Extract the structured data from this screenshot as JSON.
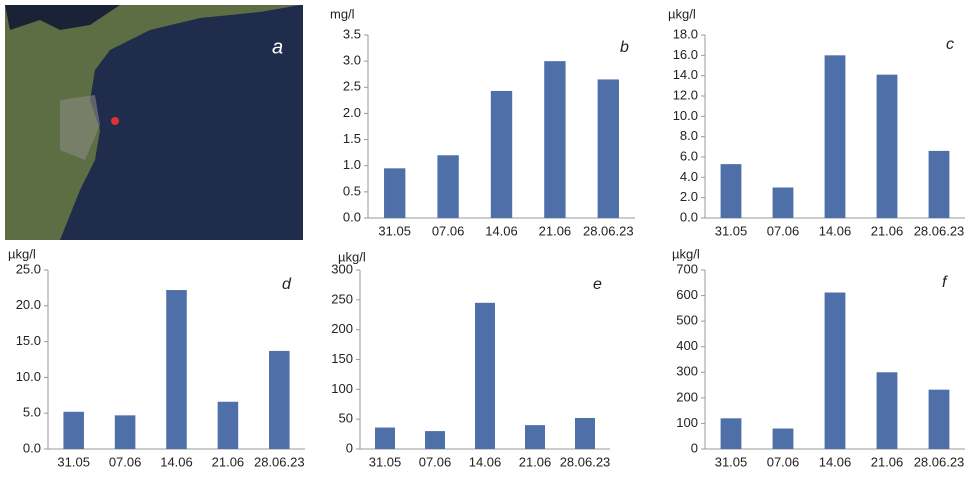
{
  "map_label": "a",
  "chart_data": [
    {
      "type": "bar",
      "panel": "b",
      "y_label": "mg/l",
      "categories": [
        "31.05",
        "07.06",
        "14.06",
        "21.06",
        "28.06.23"
      ],
      "values": [
        0.95,
        1.2,
        2.43,
        3.0,
        2.65
      ],
      "color": "#4f6fa8",
      "ylim": [
        0,
        3.5
      ],
      "yticks": [
        {
          "value": 0,
          "label": "0.0"
        },
        0.5,
        {
          "value": 1,
          "label": "1.0"
        },
        1.5,
        {
          "value": 2,
          "label": "2.0"
        },
        2.5,
        {
          "value": 3,
          "label": "3.0"
        },
        3.5
      ],
      "grid": false
    },
    {
      "type": "bar",
      "panel": "c",
      "y_label": "µkg/l",
      "categories": [
        "31.05",
        "07.06",
        "14.06",
        "21.06",
        "28.06.23"
      ],
      "values": [
        5.3,
        3.0,
        16.0,
        14.1,
        6.6
      ],
      "color": "#4f6fa8",
      "ylim": [
        0,
        18
      ],
      "yticks": [
        {
          "value": 0,
          "label": "0.0"
        },
        {
          "value": 2,
          "label": "2.0"
        },
        {
          "value": 4,
          "label": "4.0"
        },
        {
          "value": 6,
          "label": "6.0"
        },
        {
          "value": 8,
          "label": "8.0"
        },
        {
          "value": 10,
          "label": "10.0"
        },
        {
          "value": 12,
          "label": "12.0"
        },
        {
          "value": 14,
          "label": "14.0"
        },
        {
          "value": 16,
          "label": "16.0"
        },
        {
          "value": 18,
          "label": "18.0"
        }
      ],
      "grid": false
    },
    {
      "type": "bar",
      "panel": "d",
      "y_label": "µkg/l",
      "categories": [
        "31.05",
        "07.06",
        "14.06",
        "21.06",
        "28.06.23"
      ],
      "values": [
        5.2,
        4.7,
        22.2,
        6.6,
        13.7
      ],
      "color": "#4f6fa8",
      "ylim": [
        0,
        25
      ],
      "yticks": [
        {
          "value": 0,
          "label": "0.0"
        },
        {
          "value": 5,
          "label": "5.0"
        },
        {
          "value": 10,
          "label": "10.0"
        },
        {
          "value": 15,
          "label": "15.0"
        },
        {
          "value": 20,
          "label": "20.0"
        },
        {
          "value": 25,
          "label": "25.0"
        }
      ],
      "grid": false
    },
    {
      "type": "bar",
      "panel": "e",
      "y_label": "µkg/l",
      "categories": [
        "31.05",
        "07.06",
        "14.06",
        "21.06",
        "28.06.23"
      ],
      "values": [
        36,
        30,
        245,
        40,
        52
      ],
      "color": "#4f6fa8",
      "ylim": [
        0,
        300
      ],
      "yticks": [
        0,
        50,
        100,
        150,
        200,
        250,
        300
      ],
      "grid": false
    },
    {
      "type": "bar",
      "panel": "f",
      "y_label": "µkg/l",
      "categories": [
        "31.05",
        "07.06",
        "14.06",
        "21.06",
        "28.06.23"
      ],
      "values": [
        120,
        80,
        612,
        300,
        232
      ],
      "color": "#4f6fa8",
      "ylim": [
        0,
        700
      ],
      "yticks": [
        0,
        100,
        200,
        300,
        400,
        500,
        600,
        700
      ],
      "grid": false
    }
  ]
}
